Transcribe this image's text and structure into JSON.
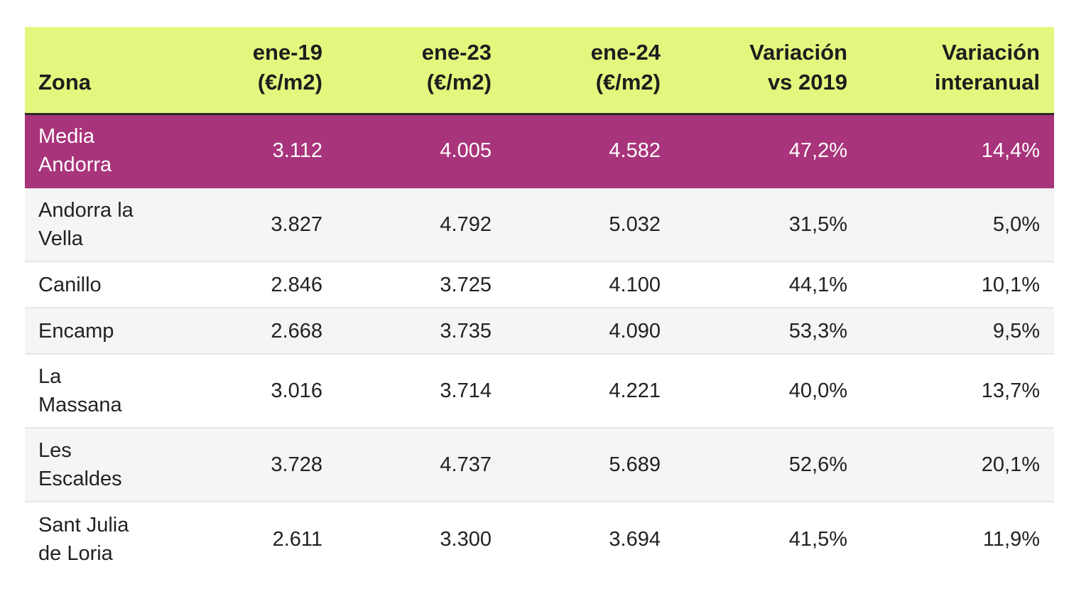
{
  "chart_data": {
    "type": "table",
    "columns": [
      "Zona",
      "ene-19 (€/m2)",
      "ene-23 (€/m2)",
      "ene-24 (€/m2)",
      "Variación vs 2019",
      "Variación interanual"
    ],
    "header": [
      [
        "Zona"
      ],
      [
        "ene-19",
        "(€/m2)"
      ],
      [
        "ene-23",
        "(€/m2)"
      ],
      [
        "ene-24",
        "(€/m2)"
      ],
      [
        "Variación",
        "vs 2019"
      ],
      [
        "Variación",
        "interanual"
      ]
    ],
    "rows": [
      {
        "zona": [
          "Media",
          "Andorra"
        ],
        "values": [
          "3.112",
          "4.005",
          "4.582",
          "47,2%",
          "14,4%"
        ]
      },
      {
        "zona": [
          "Andorra la",
          "Vella"
        ],
        "values": [
          "3.827",
          "4.792",
          "5.032",
          "31,5%",
          "5,0%"
        ]
      },
      {
        "zona": [
          "Canillo"
        ],
        "values": [
          "2.846",
          "3.725",
          "4.100",
          "44,1%",
          "10,1%"
        ]
      },
      {
        "zona": [
          "Encamp"
        ],
        "values": [
          "2.668",
          "3.735",
          "4.090",
          "53,3%",
          "9,5%"
        ]
      },
      {
        "zona": [
          "La",
          "Massana"
        ],
        "values": [
          "3.016",
          "3.714",
          "4.221",
          "40,0%",
          "13,7%"
        ]
      },
      {
        "zona": [
          "Les",
          "Escaldes"
        ],
        "values": [
          "3.728",
          "4.737",
          "5.689",
          "52,6%",
          "20,1%"
        ]
      },
      {
        "zona": [
          "Sant Julia",
          "de Loria"
        ],
        "values": [
          "2.611",
          "3.300",
          "3.694",
          "41,5%",
          "11,9%"
        ]
      }
    ],
    "highlight_row": 0,
    "colors": {
      "header_bg": "#e3f77e",
      "highlight_bg": "#a8347b",
      "alt_row_bg": "#f5f5f5"
    }
  }
}
